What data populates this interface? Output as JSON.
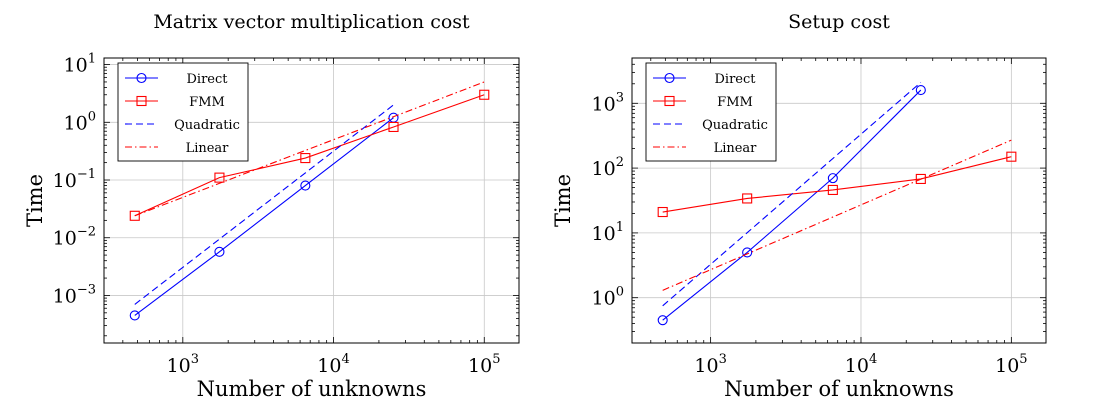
{
  "chart_data": [
    {
      "type": "line",
      "title": "Matrix vector multiplication cost",
      "xlabel": "Number of unknowns",
      "ylabel": "Time",
      "xscale": "log",
      "yscale": "log",
      "xlim": [
        300,
        170000
      ],
      "ylim": [
        0.00015,
        13
      ],
      "grid": true,
      "legend_position": "top-left",
      "x_ticks": [
        {
          "base": "10",
          "exp": "3",
          "value": 1000
        },
        {
          "base": "10",
          "exp": "4",
          "value": 10000
        },
        {
          "base": "10",
          "exp": "5",
          "value": 100000
        }
      ],
      "y_ticks": [
        {
          "base": "10",
          "exp": "−3",
          "value": 0.001
        },
        {
          "base": "10",
          "exp": "−2",
          "value": 0.01
        },
        {
          "base": "10",
          "exp": "−1",
          "value": 0.1
        },
        {
          "base": "10",
          "exp": "0",
          "value": 1
        },
        {
          "base": "10",
          "exp": "1",
          "value": 10
        }
      ],
      "series": [
        {
          "name": "Direct",
          "color": "#0000ff",
          "style": "solid",
          "marker": "circle",
          "x": [
            480,
            1750,
            6500,
            25000
          ],
          "y": [
            0.00045,
            0.0057,
            0.08,
            1.2
          ]
        },
        {
          "name": "FMM",
          "color": "#ff0000",
          "style": "solid",
          "marker": "square",
          "x": [
            480,
            1750,
            6500,
            25000,
            100000
          ],
          "y": [
            0.024,
            0.11,
            0.24,
            0.83,
            3.0
          ]
        },
        {
          "name": "Quadratic",
          "color": "#0000ff",
          "style": "dashed",
          "marker": "none",
          "x": [
            480,
            25000
          ],
          "y": [
            0.0007,
            2.0
          ]
        },
        {
          "name": "Linear",
          "color": "#ff0000",
          "style": "dashdot",
          "marker": "none",
          "x": [
            480,
            100000
          ],
          "y": [
            0.024,
            5.0
          ]
        }
      ]
    },
    {
      "type": "line",
      "title": "Setup cost",
      "xlabel": "Number of unknowns",
      "ylabel": "Time",
      "xscale": "log",
      "yscale": "log",
      "xlim": [
        300,
        170000
      ],
      "ylim": [
        0.2,
        5000
      ],
      "grid": true,
      "legend_position": "top-left",
      "x_ticks": [
        {
          "base": "10",
          "exp": "3",
          "value": 1000
        },
        {
          "base": "10",
          "exp": "4",
          "value": 10000
        },
        {
          "base": "10",
          "exp": "5",
          "value": 100000
        }
      ],
      "y_ticks": [
        {
          "base": "10",
          "exp": "0",
          "value": 1
        },
        {
          "base": "10",
          "exp": "1",
          "value": 10
        },
        {
          "base": "10",
          "exp": "2",
          "value": 100
        },
        {
          "base": "10",
          "exp": "3",
          "value": 1000
        }
      ],
      "series": [
        {
          "name": "Direct",
          "color": "#0000ff",
          "style": "solid",
          "marker": "circle",
          "x": [
            480,
            1750,
            6500,
            25000
          ],
          "y": [
            0.45,
            5.0,
            70,
            1600
          ]
        },
        {
          "name": "FMM",
          "color": "#ff0000",
          "style": "solid",
          "marker": "square",
          "x": [
            480,
            1750,
            6500,
            25000,
            100000
          ],
          "y": [
            21,
            34,
            46,
            68,
            150
          ]
        },
        {
          "name": "Quadratic",
          "color": "#0000ff",
          "style": "dashed",
          "marker": "none",
          "x": [
            480,
            25000
          ],
          "y": [
            0.75,
            2100
          ]
        },
        {
          "name": "Linear",
          "color": "#ff0000",
          "style": "dashdot",
          "marker": "none",
          "x": [
            480,
            100000
          ],
          "y": [
            1.3,
            270
          ]
        }
      ]
    }
  ]
}
